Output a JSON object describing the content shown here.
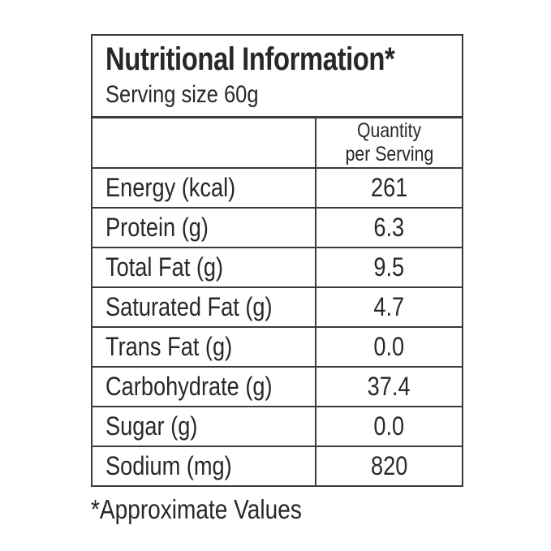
{
  "colors": {
    "text": "#2b2729",
    "border": "#3a3a3a",
    "background": "#ffffff"
  },
  "label": {
    "title": "Nutritional Information*",
    "serving_size": "Serving size 60g",
    "header": {
      "line1": "Quantity",
      "line2": "per Serving"
    },
    "rows": [
      {
        "label": "Energy (kcal)",
        "value": "261"
      },
      {
        "label": "Protein (g)",
        "value": "6.3"
      },
      {
        "label": "Total Fat (g)",
        "value": "9.5"
      },
      {
        "label": "Saturated Fat (g)",
        "value": "4.7"
      },
      {
        "label": "Trans Fat (g)",
        "value": "0.0"
      },
      {
        "label": "Carbohydrate (g)",
        "value": "37.4"
      },
      {
        "label": "Sugar (g)",
        "value": "0.0"
      },
      {
        "label": "Sodium (mg)",
        "value": "820"
      }
    ],
    "footnote": "*Approximate Values"
  }
}
